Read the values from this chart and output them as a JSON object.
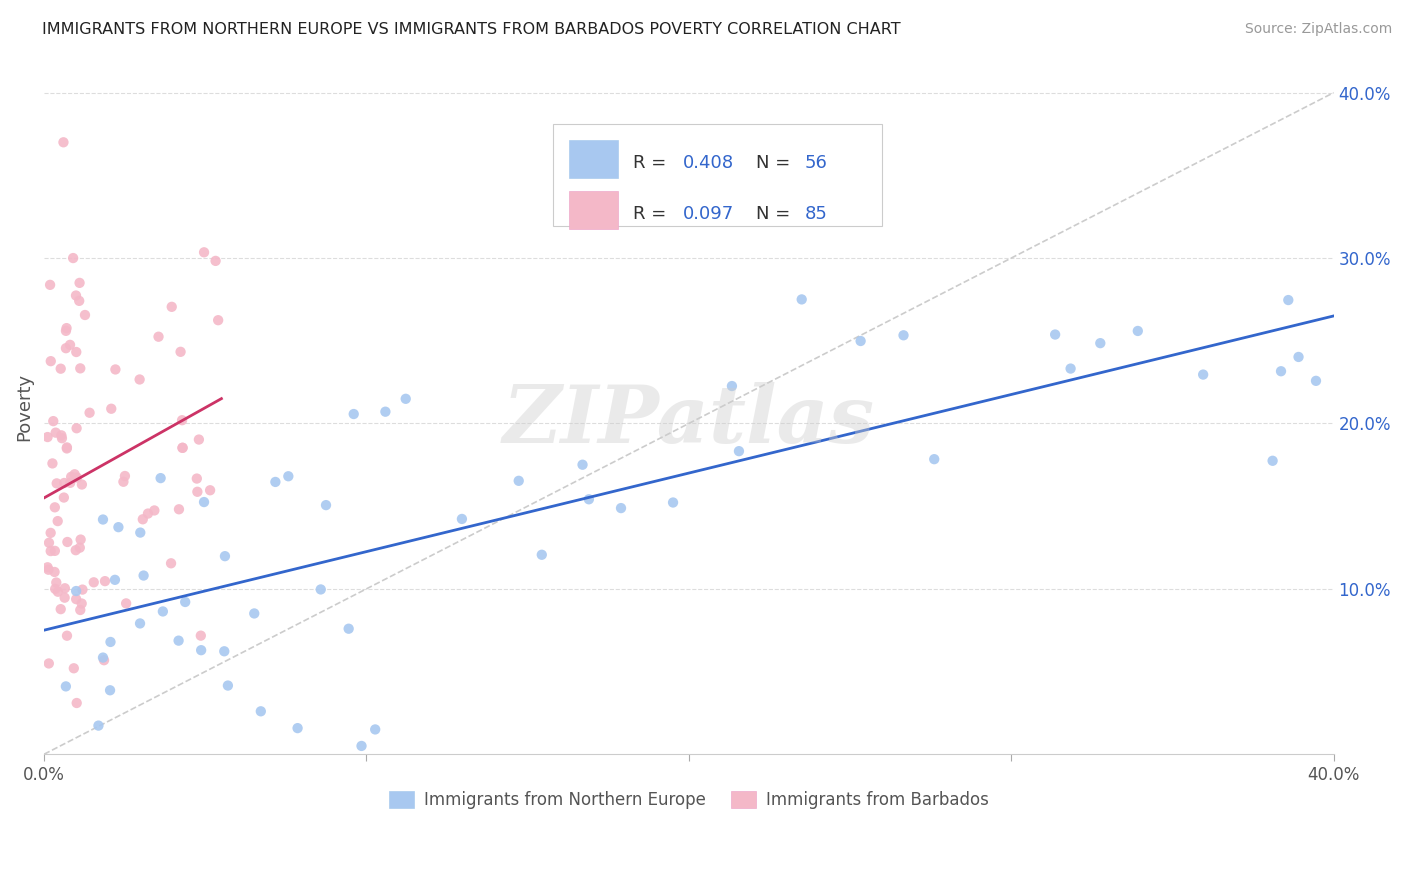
{
  "title": "IMMIGRANTS FROM NORTHERN EUROPE VS IMMIGRANTS FROM BARBADOS POVERTY CORRELATION CHART",
  "source": "Source: ZipAtlas.com",
  "ylabel": "Poverty",
  "xlim": [
    0.0,
    0.4
  ],
  "ylim": [
    0.0,
    0.42
  ],
  "yticks": [
    0.1,
    0.2,
    0.3,
    0.4
  ],
  "ytick_labels": [
    "10.0%",
    "20.0%",
    "30.0%",
    "40.0%"
  ],
  "blue_R": "0.408",
  "blue_N": "56",
  "pink_R": "0.097",
  "pink_N": "85",
  "blue_color": "#a8c8f0",
  "pink_color": "#f4b8c8",
  "blue_line_color": "#3366cc",
  "pink_line_color": "#cc3366",
  "dashed_line_color": "#cccccc",
  "legend_text_color": "#3366cc",
  "legend_label_color": "#333333",
  "watermark": "ZIPatlas",
  "background_color": "#ffffff",
  "grid_color": "#dddddd",
  "blue_line_x": [
    0.0,
    0.4
  ],
  "blue_line_y": [
    0.075,
    0.265
  ],
  "pink_line_x": [
    0.0,
    0.055
  ],
  "pink_line_y": [
    0.155,
    0.215
  ],
  "dashed_line_x": [
    0.0,
    0.4
  ],
  "dashed_line_y": [
    0.0,
    0.4
  ]
}
